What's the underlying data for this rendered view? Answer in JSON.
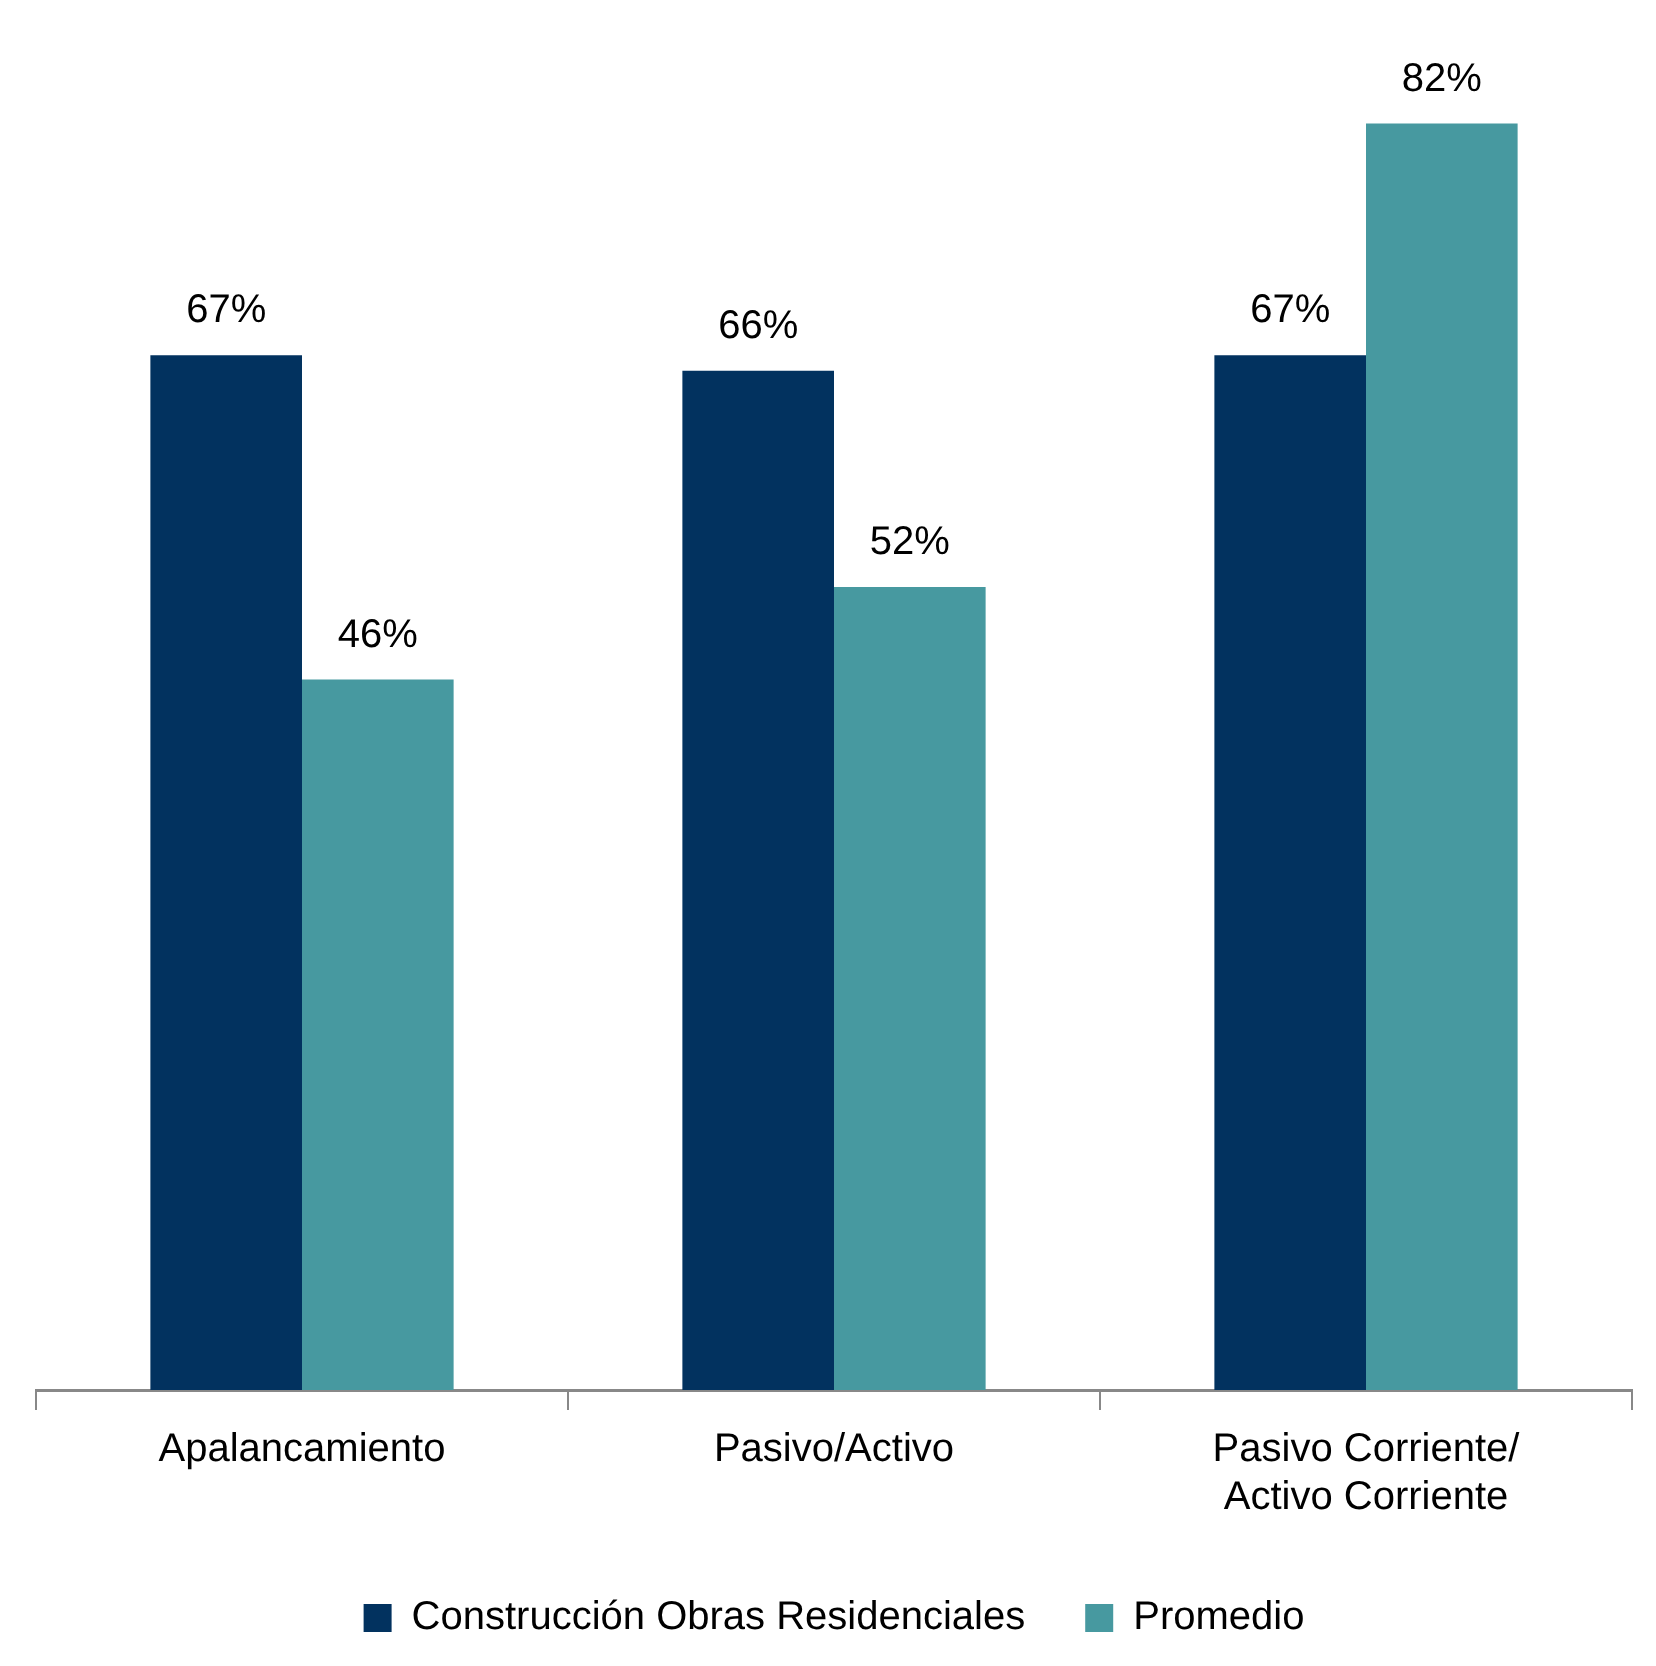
{
  "chart_data": {
    "type": "bar",
    "categories": [
      "Apalancamiento",
      "Pasivo/Activo",
      "Pasivo Corriente/\nActivo Corriente"
    ],
    "series": [
      {
        "name": "Construcción Obras Residenciales",
        "color": "#02325f",
        "values": [
          67,
          66,
          67
        ],
        "value_labels": [
          "67%",
          "66%",
          "67%"
        ]
      },
      {
        "name": "Promedio",
        "color": "#4799a0",
        "values": [
          46,
          52,
          82
        ],
        "value_labels": [
          "46%",
          "52%",
          "82%"
        ]
      }
    ],
    "grid": false,
    "legend": "bottom"
  }
}
